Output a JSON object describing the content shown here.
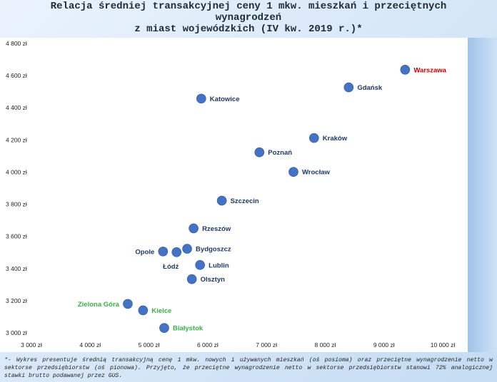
{
  "title_lines": [
    "Relacja średniej transakcyjnej ceny 1 mkw. mieszkań i przeciętnych",
    "wynagrodzeń",
    "z miast wojewódzkich (IV kw. 2019 r.)*"
  ],
  "footnote": "*- Wykres presentuje średnią transakcyjną cenę 1 mkw. nowych i używanych mieszkań (oś posioma) oraz przeciętne wynagrodzenie netto w sektorse przedsiębiorstw (oś pionowa). Przyjęto, że przeciętne wynagrodzenie netto w sektorse przedsiębiorstw stanowi 72% analogicznej stawki brutto podawanej przez GUS.",
  "colors": {
    "point": "#4472c4",
    "label_default": "#1f3864",
    "label_red": "#c00000",
    "label_green": "#3cb043",
    "axis_text": "#222222"
  },
  "chart_data": {
    "type": "scatter",
    "x_ticks": [
      "3 000 zł",
      "4 000 zł",
      "5 000 zł",
      "6 000 zł",
      "7 000 zł",
      "8 000 zł",
      "9 000 zł",
      "10 000 zł"
    ],
    "y_ticks": [
      "3 000 zł",
      "3 200 zł",
      "3 400 zł",
      "3 600 zł",
      "3 800 zł",
      "4 000 zł",
      "4 200 zł",
      "4 400 zł",
      "4 600 zł",
      "4 800 zł"
    ],
    "xlim": [
      3000,
      10000
    ],
    "ylim": [
      3000,
      4800
    ],
    "grid": false,
    "points": [
      {
        "city": "Warszawa",
        "x": 9360,
        "y": 4637,
        "color": "red",
        "label_side": "right"
      },
      {
        "city": "Gdańsk",
        "x": 8400,
        "y": 4527,
        "color": "default",
        "label_side": "right"
      },
      {
        "city": "Katowice",
        "x": 5890,
        "y": 4457,
        "color": "default",
        "label_side": "right"
      },
      {
        "city": "Kraków",
        "x": 7810,
        "y": 4212,
        "color": "default",
        "label_side": "right"
      },
      {
        "city": "Poznań",
        "x": 6880,
        "y": 4123,
        "color": "default",
        "label_side": "right"
      },
      {
        "city": "Wrocław",
        "x": 7460,
        "y": 4001,
        "color": "default",
        "label_side": "right"
      },
      {
        "city": "Szczecin",
        "x": 6240,
        "y": 3822,
        "color": "default",
        "label_side": "right"
      },
      {
        "city": "Rzeszów",
        "x": 5760,
        "y": 3650,
        "color": "default",
        "label_side": "right"
      },
      {
        "city": "Bydgoszcz",
        "x": 5650,
        "y": 3523,
        "color": "default",
        "label_side": "right"
      },
      {
        "city": "Opole",
        "x": 5240,
        "y": 3506,
        "color": "default",
        "label_side": "left"
      },
      {
        "city": "Łódź",
        "x": 5470,
        "y": 3502,
        "color": "default",
        "label_side": "below-left"
      },
      {
        "city": "Lublin",
        "x": 5870,
        "y": 3422,
        "color": "default",
        "label_side": "right"
      },
      {
        "city": "Olsztyn",
        "x": 5730,
        "y": 3334,
        "color": "default",
        "label_side": "right"
      },
      {
        "city": "Zielona Góra",
        "x": 4640,
        "y": 3180,
        "color": "green",
        "label_side": "left"
      },
      {
        "city": "Kielce",
        "x": 4900,
        "y": 3140,
        "color": "green",
        "label_side": "right"
      },
      {
        "city": "Białystok",
        "x": 5260,
        "y": 3030,
        "color": "green",
        "label_side": "right"
      }
    ]
  }
}
